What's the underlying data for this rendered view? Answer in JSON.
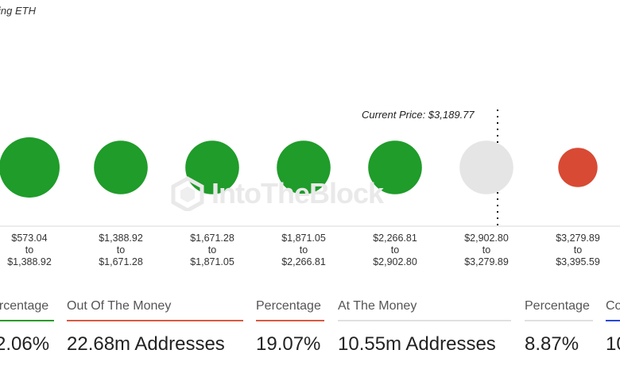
{
  "header": {
    "title_fragment": "ing ETH"
  },
  "current_price_label": "Current Price: $3,189.77",
  "watermark": "IntoTheBlock",
  "colors": {
    "in_the_money": "#1f9c2a",
    "at_the_money": "#e5e5e5",
    "out_of_the_money": "#d84a34",
    "bar_green": "#2a9b2a",
    "bar_red": "#d65a43",
    "bar_grey": "#e0e0e0",
    "bar_blue": "#2747d8"
  },
  "chart_data": {
    "type": "bubble",
    "title": "",
    "current_price": 3189.77,
    "bins": [
      {
        "from": "$573.04",
        "to": "$1,388.92",
        "status": "in",
        "relative_size": 1.0
      },
      {
        "from": "$1,388.92",
        "to": "$1,671.28",
        "status": "in",
        "relative_size": 0.89
      },
      {
        "from": "$1,671.28",
        "to": "$1,871.05",
        "status": "in",
        "relative_size": 0.89
      },
      {
        "from": "$1,871.05",
        "to": "$2,266.81",
        "status": "in",
        "relative_size": 0.89
      },
      {
        "from": "$2,266.81",
        "to": "$2,902.80",
        "status": "in",
        "relative_size": 0.89
      },
      {
        "from": "$2,902.80",
        "to": "$3,279.89",
        "status": "at",
        "relative_size": 0.89
      },
      {
        "from": "$3,279.89",
        "to": "$3,395.59",
        "status": "out",
        "relative_size": 0.65
      }
    ],
    "range_connector": "to"
  },
  "summary": [
    {
      "label": "ercentage",
      "value": ".06%",
      "color": "#2a9b2a",
      "strong": false
    },
    {
      "label": "Out Of The Money",
      "value": "22.68m Addresses",
      "color": "#d65a43",
      "strong": false
    },
    {
      "label": "Percentage",
      "value": "19.07%",
      "color": "#d65a43",
      "strong": false
    },
    {
      "label": "At The Money",
      "value": "10.55m Addresses",
      "color": "#e0e0e0",
      "strong": false
    },
    {
      "label": "Percentage",
      "value": "8.87%",
      "color": "#e0e0e0",
      "strong": false
    },
    {
      "label": "Co",
      "value": "10",
      "color": "#2747d8",
      "strong": false
    }
  ]
}
